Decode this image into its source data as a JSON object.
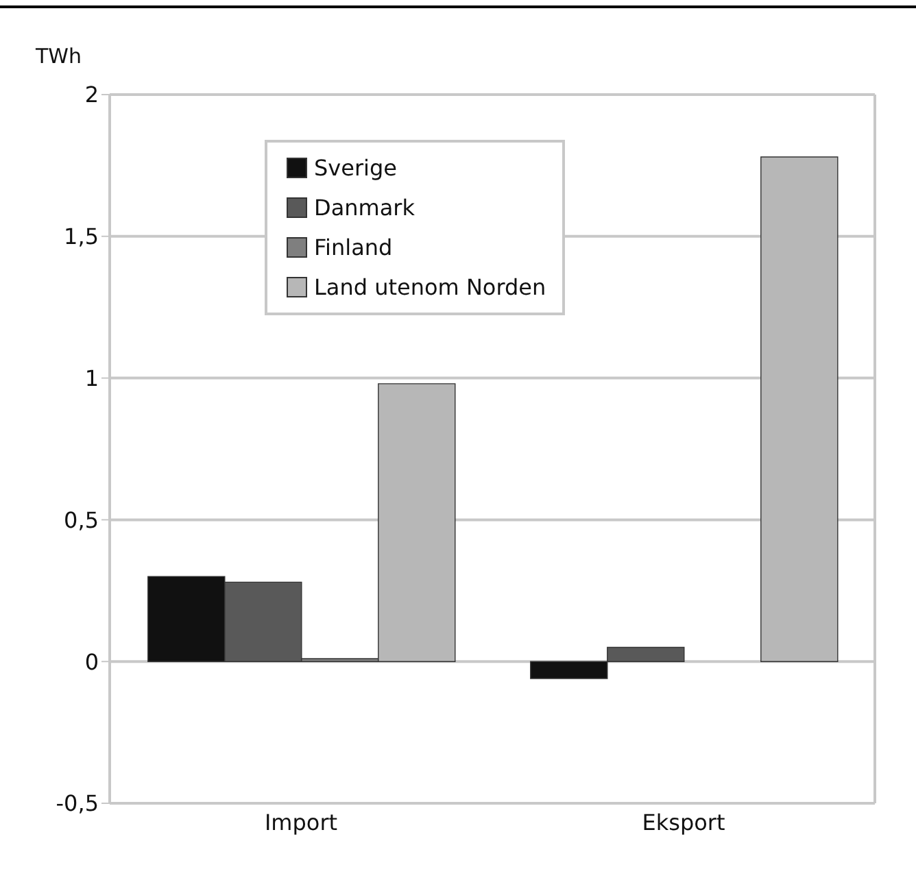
{
  "chart_data": {
    "type": "bar",
    "ylabel": "TWh",
    "categories": [
      "Import",
      "Eksport"
    ],
    "series": [
      {
        "name": "Sverige",
        "color": "#111111",
        "values": [
          0.3,
          -0.06
        ]
      },
      {
        "name": "Danmark",
        "color": "#595959",
        "values": [
          0.28,
          0.05
        ]
      },
      {
        "name": "Finland",
        "color": "#7f7f7f",
        "values": [
          0.01,
          0
        ]
      },
      {
        "name": "Land utenom Norden",
        "color": "#b7b7b7",
        "values": [
          0.98,
          1.78
        ]
      }
    ],
    "ylim": [
      -0.5,
      2
    ],
    "yticks": [
      {
        "value": -0.5,
        "label": "-0,5"
      },
      0,
      {
        "value": 0.5,
        "label": "0,5"
      },
      1,
      {
        "value": 1.5,
        "label": "1,5"
      },
      2
    ],
    "grid": "y",
    "legend": "top left"
  }
}
